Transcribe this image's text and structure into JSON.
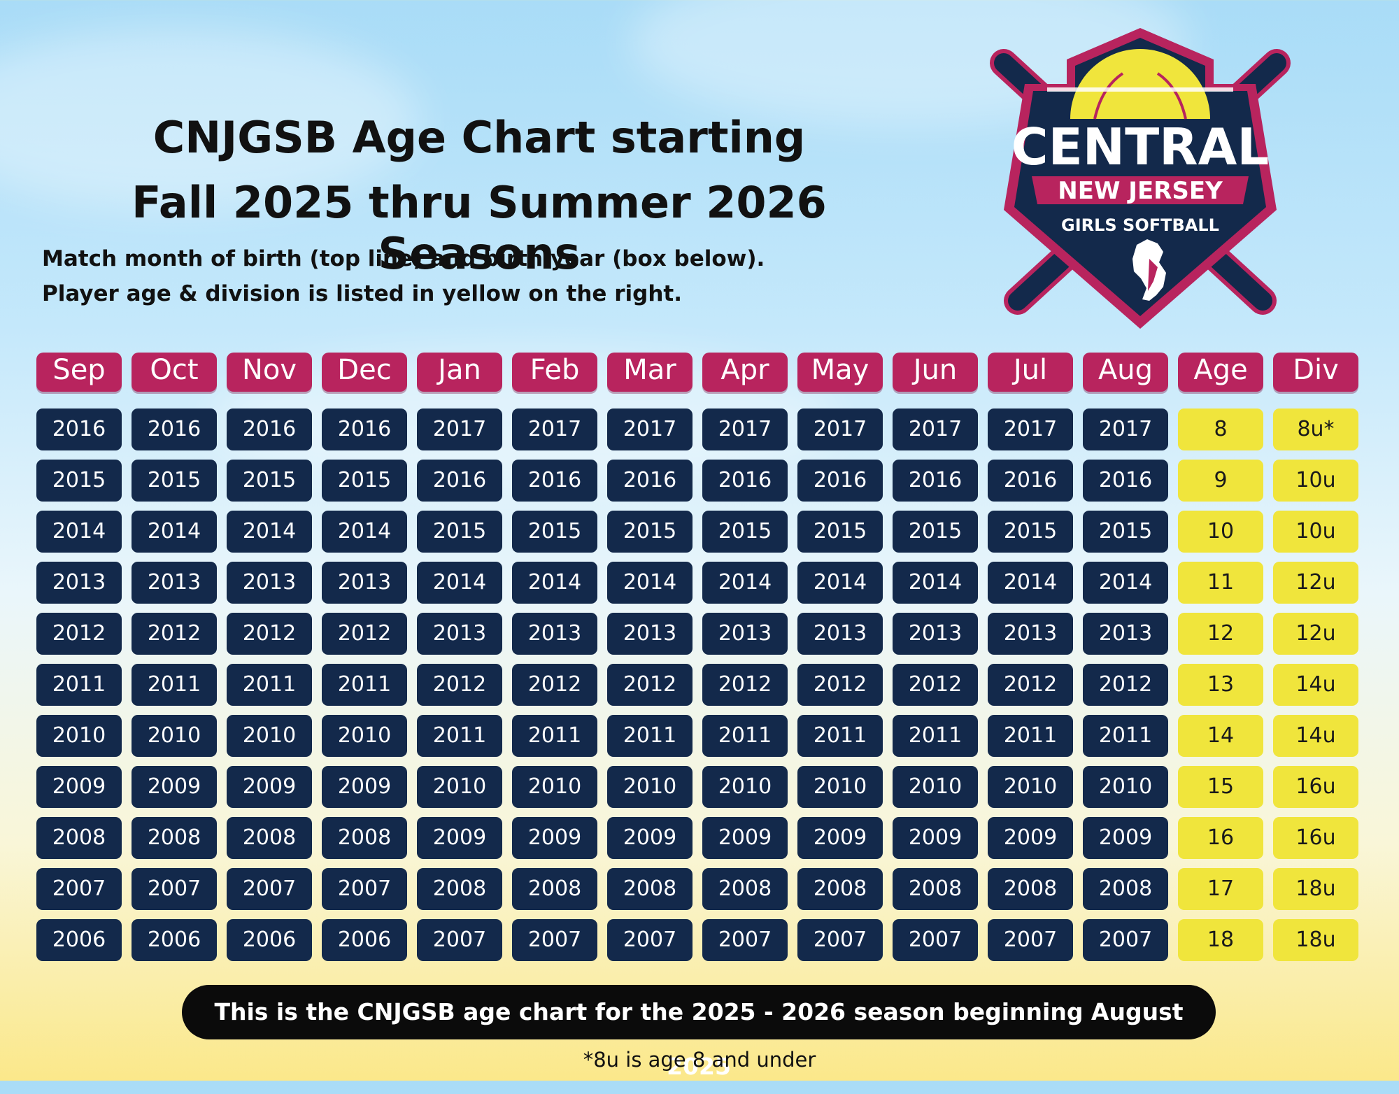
{
  "title_line1": "CNJGSB Age Chart starting",
  "title_line2": "Fall 2025 thru Summer 2026 Seasons",
  "subtitle_line1": "Match month of birth (top line) and birth year (box below).",
  "subtitle_line2": "Player age & division is listed in yellow on the right.",
  "logo": {
    "main": "CENTRAL",
    "ribbon": "NEW JERSEY",
    "sub": "GIRLS SOFTBALL",
    "colors": {
      "navy": "#13294b",
      "magenta": "#b8245e",
      "yellow": "#f0e53c"
    }
  },
  "headers": [
    "Sep",
    "Oct",
    "Nov",
    "Dec",
    "Jan",
    "Feb",
    "Mar",
    "Apr",
    "May",
    "Jun",
    "Jul",
    "Aug",
    "Age",
    "Div"
  ],
  "rows": [
    {
      "sep_dec": "2016",
      "jan_aug": "2017",
      "age": "8",
      "div": "8u*"
    },
    {
      "sep_dec": "2015",
      "jan_aug": "2016",
      "age": "9",
      "div": "10u"
    },
    {
      "sep_dec": "2014",
      "jan_aug": "2015",
      "age": "10",
      "div": "10u"
    },
    {
      "sep_dec": "2013",
      "jan_aug": "2014",
      "age": "11",
      "div": "12u"
    },
    {
      "sep_dec": "2012",
      "jan_aug": "2013",
      "age": "12",
      "div": "12u"
    },
    {
      "sep_dec": "2011",
      "jan_aug": "2012",
      "age": "13",
      "div": "14u"
    },
    {
      "sep_dec": "2010",
      "jan_aug": "2011",
      "age": "14",
      "div": "14u"
    },
    {
      "sep_dec": "2009",
      "jan_aug": "2010",
      "age": "15",
      "div": "16u"
    },
    {
      "sep_dec": "2008",
      "jan_aug": "2009",
      "age": "16",
      "div": "16u"
    },
    {
      "sep_dec": "2007",
      "jan_aug": "2008",
      "age": "17",
      "div": "18u"
    },
    {
      "sep_dec": "2006",
      "jan_aug": "2007",
      "age": "18",
      "div": "18u"
    }
  ],
  "banner": "This is the CNJGSB age chart for the 2025 - 2026 season beginning August 2025",
  "footnote": "*8u is age 8 and under"
}
